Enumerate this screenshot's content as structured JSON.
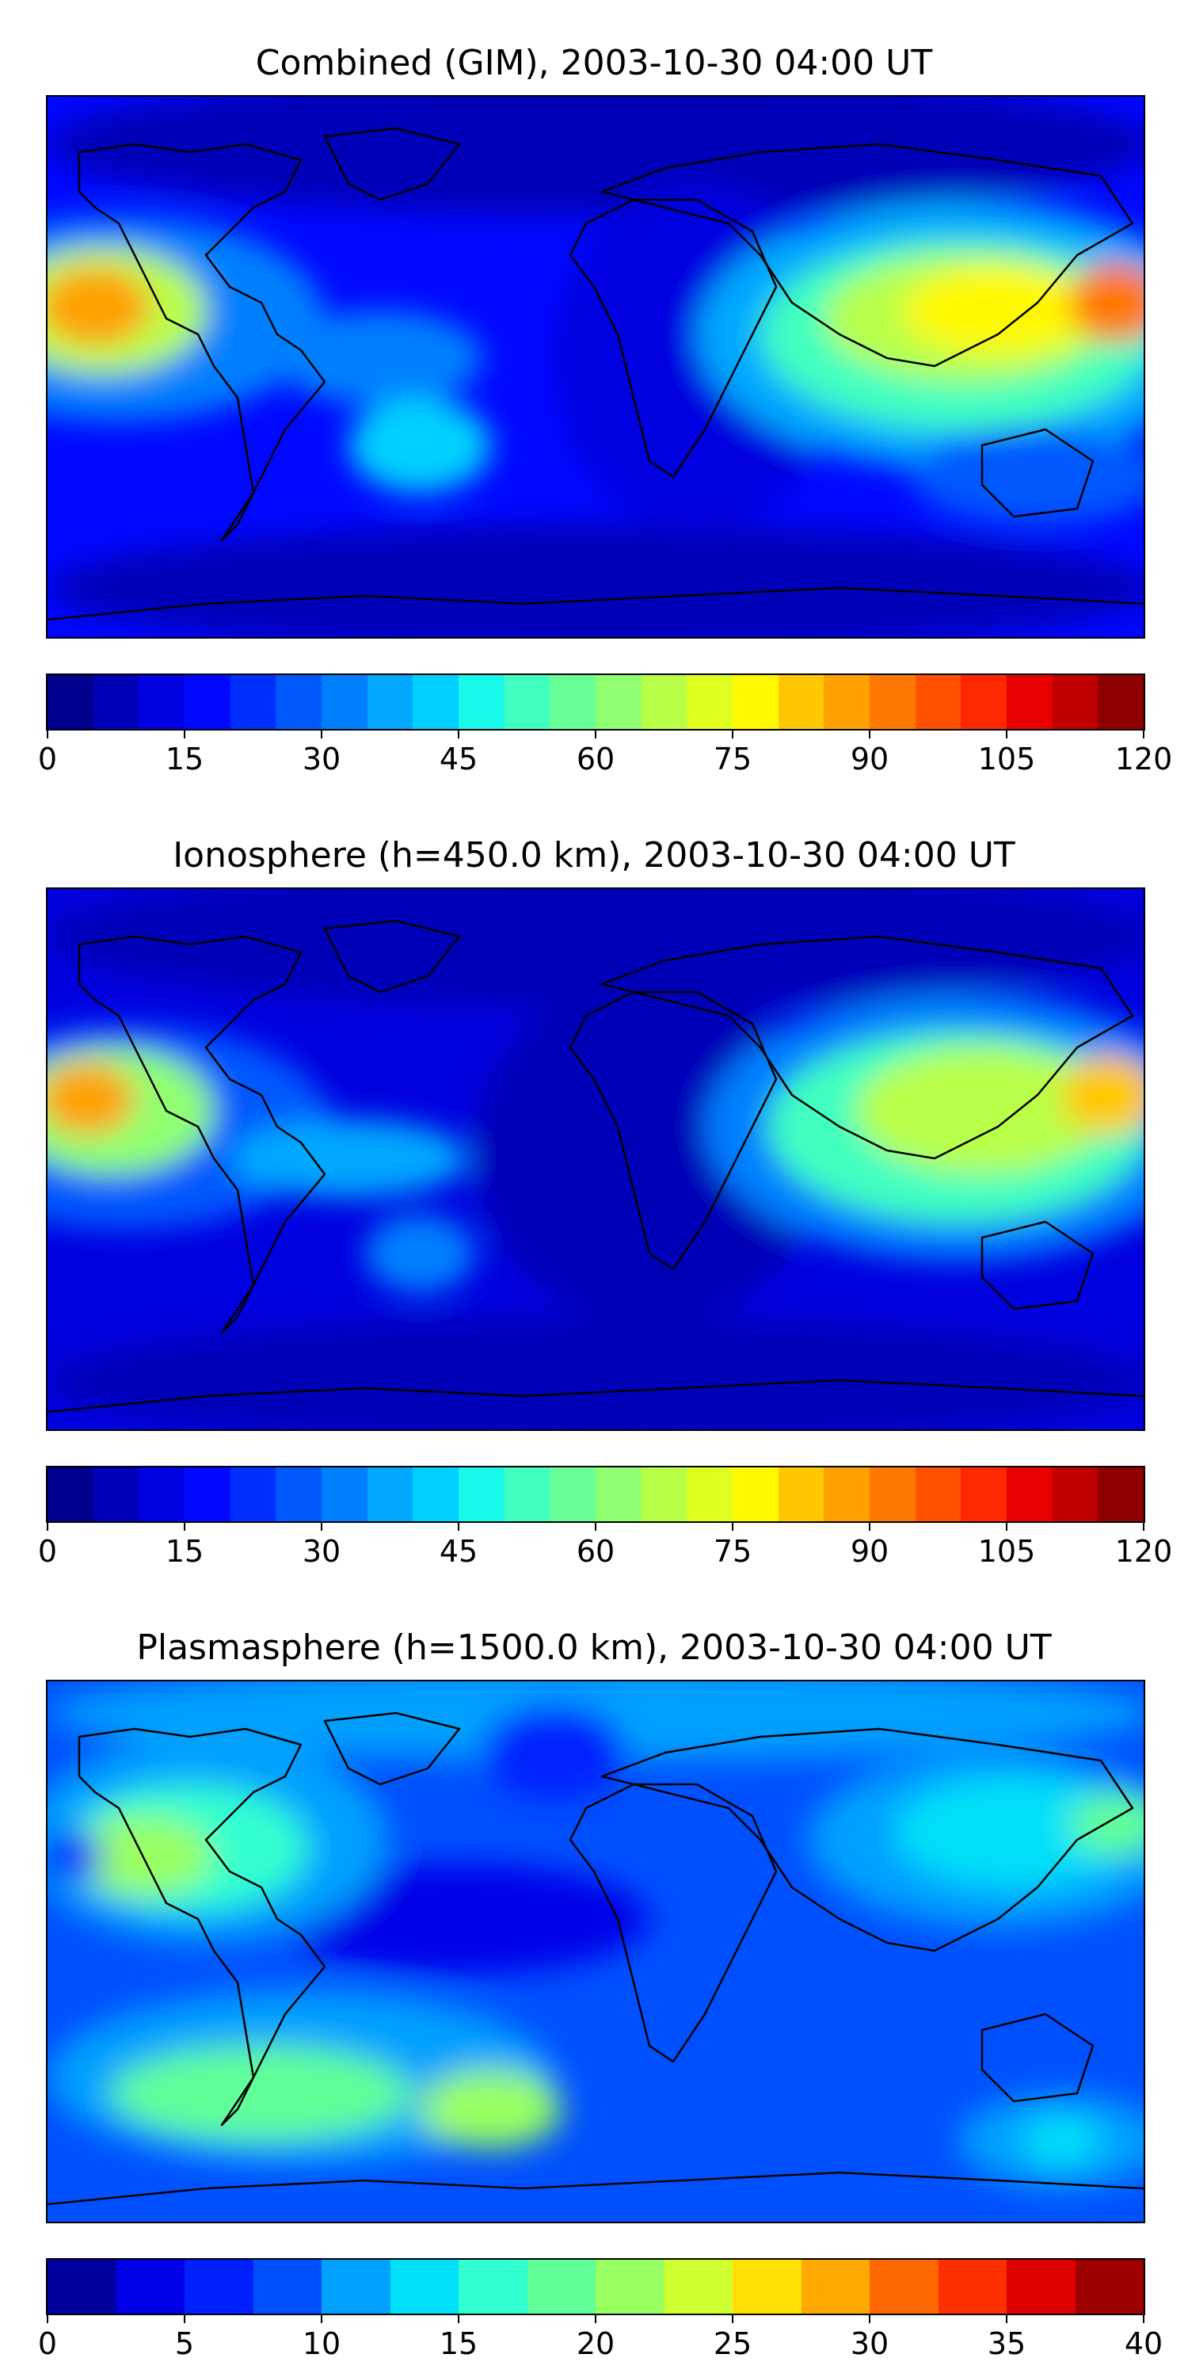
{
  "panels": [
    {
      "title": "Combined (GIM), 2003-10-30 04:00 UT",
      "colorbar": {
        "vmin": 0,
        "vmax": 120,
        "levels": 24,
        "tick_labels": [
          "0",
          "15",
          "30",
          "45",
          "60",
          "75",
          "90",
          "105",
          "120"
        ],
        "colors": [
          "#00008f",
          "#0000b8",
          "#0000e0",
          "#0008ff",
          "#0030ff",
          "#0058ff",
          "#0080ff",
          "#00a8ff",
          "#00d0ff",
          "#18f8e8",
          "#40ffc0",
          "#68ff98",
          "#90ff70",
          "#b8ff48",
          "#e0ff20",
          "#fff800",
          "#ffc800",
          "#ffa000",
          "#ff7800",
          "#ff5000",
          "#ff2800",
          "#e80000",
          "#c00000",
          "#8f0000"
        ]
      }
    },
    {
      "title": "Ionosphere  (h=450.0 km), 2003-10-30 04:00 UT",
      "colorbar": {
        "vmin": 0,
        "vmax": 120,
        "levels": 24,
        "tick_labels": [
          "0",
          "15",
          "30",
          "45",
          "60",
          "75",
          "90",
          "105",
          "120"
        ],
        "colors": [
          "#00008f",
          "#0000b8",
          "#0000e0",
          "#0008ff",
          "#0030ff",
          "#0058ff",
          "#0080ff",
          "#00a8ff",
          "#00d0ff",
          "#18f8e8",
          "#40ffc0",
          "#68ff98",
          "#90ff70",
          "#b8ff48",
          "#e0ff20",
          "#fff800",
          "#ffc800",
          "#ffa000",
          "#ff7800",
          "#ff5000",
          "#ff2800",
          "#e80000",
          "#c00000",
          "#8f0000"
        ]
      }
    },
    {
      "title": "Plasmasphere (h=1500.0 km), 2003-10-30 04:00 UT",
      "colorbar": {
        "vmin": 0,
        "vmax": 40,
        "levels": 16,
        "tick_labels": [
          "0",
          "5",
          "10",
          "15",
          "20",
          "25",
          "30",
          "35",
          "40"
        ],
        "colors": [
          "#00009f",
          "#0000e8",
          "#0020ff",
          "#0050ff",
          "#00a0ff",
          "#00e0f8",
          "#30ffd0",
          "#60ff98",
          "#98ff60",
          "#d0ff30",
          "#ffe000",
          "#ffa800",
          "#ff6800",
          "#ff3000",
          "#e00000",
          "#9f0000"
        ]
      }
    }
  ],
  "colors": {
    "ocean_bg": "#0000cc",
    "coastline": "#000000"
  }
}
